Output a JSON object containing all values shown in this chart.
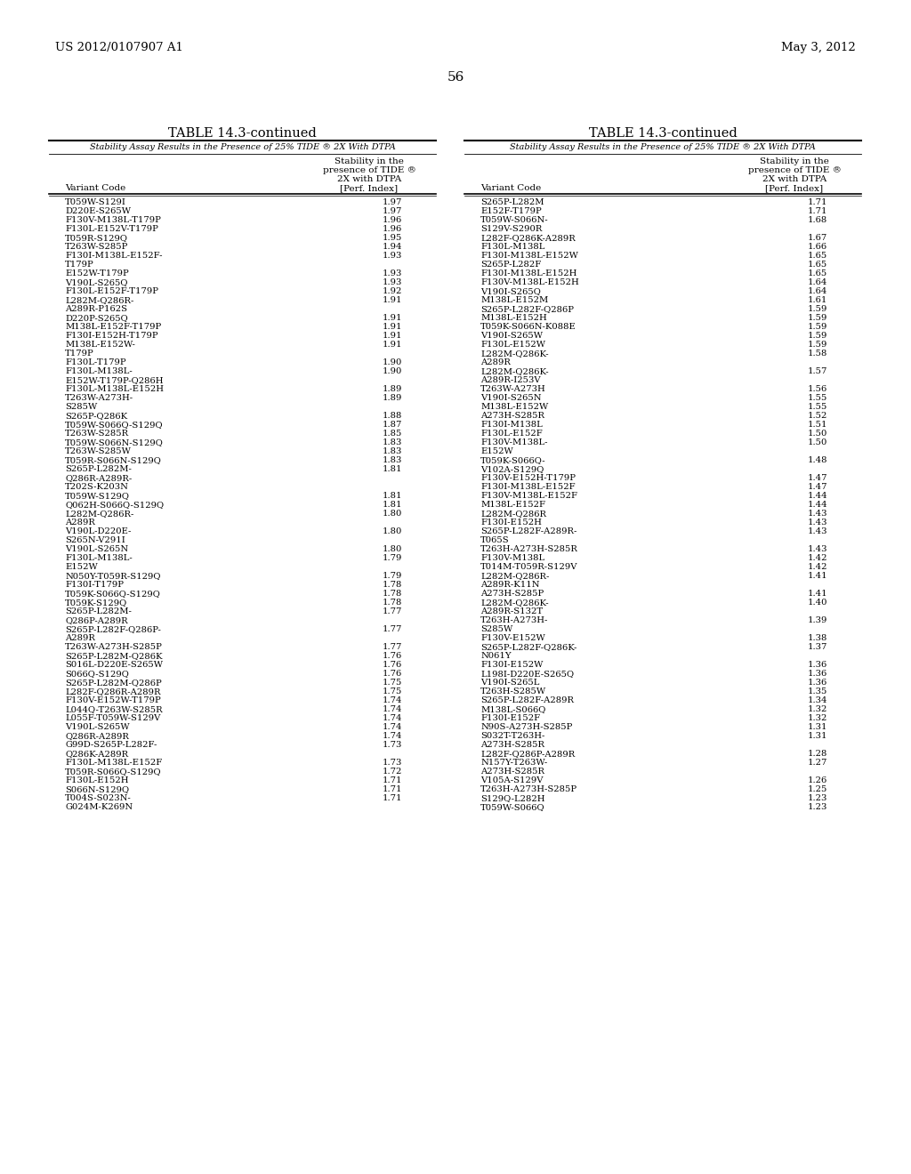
{
  "header_left": "US 2012/0107907 A1",
  "header_right": "May 3, 2012",
  "page_number": "56",
  "table_title": "TABLE 14.3-continued",
  "table_subtitle": "Stability Assay Results in the Presence of 25% TIDE ® 2X With DTPA",
  "col1_header": "Variant Code",
  "col2_header_lines": [
    "Stability in the",
    "presence of TIDE ®",
    "2X with DTPA",
    "[Perf. Index]"
  ],
  "left_data": [
    [
      "T059W-S129I",
      "1.97",
      1
    ],
    [
      "D220E-S265W",
      "1.97",
      1
    ],
    [
      "F130V-M138L-T179P",
      "1.96",
      1
    ],
    [
      "F130L-E152V-T179P",
      "1.96",
      1
    ],
    [
      "T059R-S129Q",
      "1.95",
      1
    ],
    [
      "T263W-S285P",
      "1.94",
      1
    ],
    [
      "F130I-M138L-E152F-",
      "1.93",
      2
    ],
    [
      "T179P",
      "",
      0
    ],
    [
      "E152W-T179P",
      "1.93",
      1
    ],
    [
      "V190L-S265Q",
      "1.93",
      1
    ],
    [
      "F130L-E152F-T179P",
      "1.92",
      1
    ],
    [
      "L282M-Q286R-",
      "1.91",
      2
    ],
    [
      "A289R-P162S",
      "",
      0
    ],
    [
      "D220P-S265Q",
      "1.91",
      1
    ],
    [
      "M138L-E152F-T179P",
      "1.91",
      1
    ],
    [
      "F130I-E152H-T179P",
      "1.91",
      1
    ],
    [
      "M138L-E152W-",
      "1.91",
      2
    ],
    [
      "T179P",
      "",
      0
    ],
    [
      "F130L-T179P",
      "1.90",
      1
    ],
    [
      "F130L-M138L-",
      "1.90",
      2
    ],
    [
      "E152W-T179P-Q286H",
      "",
      0
    ],
    [
      "F130L-M138L-E152H",
      "1.89",
      1
    ],
    [
      "T263W-A273H-",
      "1.89",
      2
    ],
    [
      "S285W",
      "",
      0
    ],
    [
      "S265P-Q286K",
      "1.88",
      1
    ],
    [
      "T059W-S066Q-S129Q",
      "1.87",
      1
    ],
    [
      "T263W-S285R",
      "1.85",
      1
    ],
    [
      "T059W-S066N-S129Q",
      "1.83",
      1
    ],
    [
      "T263W-S285W",
      "1.83",
      1
    ],
    [
      "T059R-S066N-S129Q",
      "1.83",
      1
    ],
    [
      "S265P-L282M-",
      "1.81",
      3
    ],
    [
      "Q286R-A289R-",
      "",
      0
    ],
    [
      "T202S-K203N",
      "",
      0
    ],
    [
      "T059W-S129Q",
      "1.81",
      1
    ],
    [
      "Q062H-S066Q-S129Q",
      "1.81",
      1
    ],
    [
      "L282M-Q286R-",
      "1.80",
      2
    ],
    [
      "A289R",
      "",
      0
    ],
    [
      "V190L-D220E-",
      "1.80",
      2
    ],
    [
      "S265N-V291I",
      "",
      0
    ],
    [
      "V190L-S265N",
      "1.80",
      1
    ],
    [
      "F130L-M138L-",
      "1.79",
      2
    ],
    [
      "E152W",
      "",
      0
    ],
    [
      "N050Y-T059R-S129Q",
      "1.79",
      1
    ],
    [
      "F130I-T179P",
      "1.78",
      1
    ],
    [
      "T059K-S066Q-S129Q",
      "1.78",
      1
    ],
    [
      "T059K-S129Q",
      "1.78",
      1
    ],
    [
      "S265P-L282M-",
      "1.77",
      2
    ],
    [
      "Q286P-A289R",
      "",
      0
    ],
    [
      "S265P-L282F-Q286P-",
      "1.77",
      2
    ],
    [
      "A289R",
      "",
      0
    ],
    [
      "T263W-A273H-S285P",
      "1.77",
      1
    ],
    [
      "S265P-L282M-Q286K",
      "1.76",
      1
    ],
    [
      "S016L-D220E-S265W",
      "1.76",
      1
    ],
    [
      "S066Q-S129Q",
      "1.76",
      1
    ],
    [
      "S265P-L282M-Q286P",
      "1.75",
      1
    ],
    [
      "L282F-Q286R-A289R",
      "1.75",
      1
    ],
    [
      "F130V-E152W-T179P",
      "1.74",
      1
    ],
    [
      "L044Q-T263W-S285R",
      "1.74",
      1
    ],
    [
      "L055F-T059W-S129V",
      "1.74",
      1
    ],
    [
      "V190L-S265W",
      "1.74",
      1
    ],
    [
      "Q286R-A289R",
      "1.74",
      1
    ],
    [
      "G99D-S265P-L282F-",
      "1.73",
      2
    ],
    [
      "Q286K-A289R",
      "",
      0
    ],
    [
      "F130L-M138L-E152F",
      "1.73",
      1
    ],
    [
      "T059R-S066Q-S129Q",
      "1.72",
      1
    ],
    [
      "F130L-E152H",
      "1.71",
      1
    ],
    [
      "S066N-S129Q",
      "1.71",
      1
    ],
    [
      "T004S-S023N-",
      "1.71",
      2
    ],
    [
      "G024M-K269N",
      "",
      0
    ]
  ],
  "right_data": [
    [
      "S265P-L282M",
      "1.71",
      1
    ],
    [
      "E152F-T179P",
      "1.71",
      1
    ],
    [
      "T059W-S066N-",
      "1.68",
      2
    ],
    [
      "S129V-S290R",
      "",
      0
    ],
    [
      "L282F-Q286K-A289R",
      "1.67",
      1
    ],
    [
      "F130L-M138L",
      "1.66",
      1
    ],
    [
      "F130I-M138L-E152W",
      "1.65",
      1
    ],
    [
      "S265P-L282F",
      "1.65",
      1
    ],
    [
      "F130I-M138L-E152H",
      "1.65",
      1
    ],
    [
      "F130V-M138L-E152H",
      "1.64",
      1
    ],
    [
      "V190I-S265Q",
      "1.64",
      1
    ],
    [
      "M138L-E152M",
      "1.61",
      1
    ],
    [
      "S265P-L282F-Q286P",
      "1.59",
      1
    ],
    [
      "M138L-E152H",
      "1.59",
      1
    ],
    [
      "T059K-S066N-K088E",
      "1.59",
      1
    ],
    [
      "V190I-S265W",
      "1.59",
      1
    ],
    [
      "F130L-E152W",
      "1.59",
      1
    ],
    [
      "L282M-Q286K-",
      "1.58",
      2
    ],
    [
      "A289R",
      "",
      0
    ],
    [
      "L282M-Q286K-",
      "1.57",
      2
    ],
    [
      "A289R-I253V",
      "",
      0
    ],
    [
      "T263W-A273H",
      "1.56",
      1
    ],
    [
      "V190I-S265N",
      "1.55",
      1
    ],
    [
      "M138L-E152W",
      "1.55",
      1
    ],
    [
      "A273H-S285R",
      "1.52",
      1
    ],
    [
      "F130I-M138L",
      "1.51",
      1
    ],
    [
      "F130L-E152F",
      "1.50",
      1
    ],
    [
      "F130V-M138L-",
      "1.50",
      2
    ],
    [
      "E152W",
      "",
      0
    ],
    [
      "T059K-S066Q-",
      "1.48",
      2
    ],
    [
      "V102A-S129Q",
      "",
      0
    ],
    [
      "F130V-E152H-T179P",
      "1.47",
      1
    ],
    [
      "F130I-M138L-E152F",
      "1.47",
      1
    ],
    [
      "F130V-M138L-E152F",
      "1.44",
      1
    ],
    [
      "M138L-E152F",
      "1.44",
      1
    ],
    [
      "L282M-Q286R",
      "1.43",
      1
    ],
    [
      "F130I-E152H",
      "1.43",
      1
    ],
    [
      "S265P-L282F-A289R-",
      "1.43",
      2
    ],
    [
      "T065S",
      "",
      0
    ],
    [
      "T263H-A273H-S285R",
      "1.43",
      1
    ],
    [
      "F130V-M138L",
      "1.42",
      1
    ],
    [
      "T014M-T059R-S129V",
      "1.42",
      1
    ],
    [
      "L282M-Q286R-",
      "1.41",
      2
    ],
    [
      "A289R-K11N",
      "",
      0
    ],
    [
      "A273H-S285P",
      "1.41",
      1
    ],
    [
      "L282M-Q286K-",
      "1.40",
      2
    ],
    [
      "A289R-S132T",
      "",
      0
    ],
    [
      "T263H-A273H-",
      "1.39",
      2
    ],
    [
      "S285W",
      "",
      0
    ],
    [
      "F130V-E152W",
      "1.38",
      1
    ],
    [
      "S265P-L282F-Q286K-",
      "1.37",
      2
    ],
    [
      "N061Y",
      "",
      0
    ],
    [
      "F130I-E152W",
      "1.36",
      1
    ],
    [
      "L198I-D220E-S265Q",
      "1.36",
      1
    ],
    [
      "V190I-S265L",
      "1.36",
      1
    ],
    [
      "T263H-S285W",
      "1.35",
      1
    ],
    [
      "S265P-L282F-A289R",
      "1.34",
      1
    ],
    [
      "M138L-S066Q",
      "1.32",
      1
    ],
    [
      "F130I-E152F",
      "1.32",
      1
    ],
    [
      "N90S-A273H-S285P",
      "1.31",
      1
    ],
    [
      "S032T-T263H-",
      "1.31",
      2
    ],
    [
      "A273H-S285R",
      "",
      0
    ],
    [
      "L282F-Q286P-A289R",
      "1.28",
      1
    ],
    [
      "N157Y-T263W-",
      "1.27",
      2
    ],
    [
      "A273H-S285R",
      "",
      0
    ],
    [
      "V105A-S129V",
      "1.26",
      1
    ],
    [
      "T263H-A273H-S285P",
      "1.25",
      1
    ],
    [
      "S129Q-L282H",
      "1.23",
      1
    ],
    [
      "T059W-S066Q",
      "1.23",
      1
    ]
  ]
}
